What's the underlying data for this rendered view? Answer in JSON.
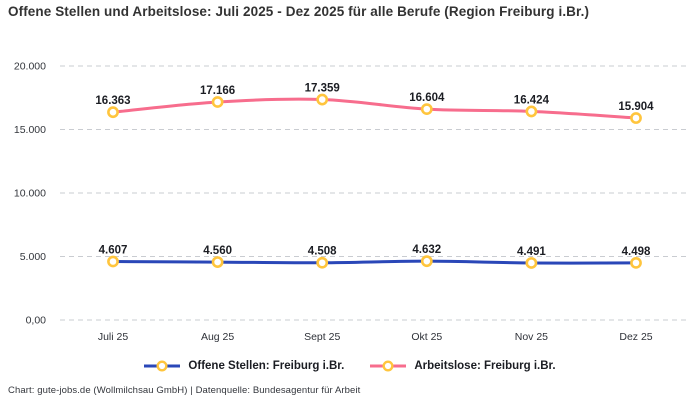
{
  "title": "Offene Stellen und Arbeitslose: Juli 2025 - Dez 2025 für alle Berufe (Region Freiburg i.Br.)",
  "footer": "Chart: gute-jobs.de (Wollmilchsau GmbH) | Datenquelle: Bundesagentur für Arbeit",
  "colors": {
    "open_positions_line": "#2A47B8",
    "unemployed_line": "#F76D8D",
    "marker_ring": "#FFC53D",
    "gridline": "#c9ccd1",
    "label_text": "#1b1d23",
    "tick_text": "#33363c"
  },
  "chart_data": {
    "type": "line",
    "title": "Offene Stellen und Arbeitslose: Juli 2025 - Dez 2025 für alle Berufe (Region Freiburg i.Br.)",
    "categories": [
      "Juli 25",
      "Aug 25",
      "Sept 25",
      "Okt 25",
      "Nov 25",
      "Dez 25"
    ],
    "series": [
      {
        "name": "Offene Stellen: Freiburg i.Br.",
        "values": [
          4607,
          4560,
          4508,
          4632,
          4491,
          4498
        ],
        "labels": [
          "4.607",
          "4.560",
          "4.508",
          "4.632",
          "4.491",
          "4.498"
        ],
        "color": "#2A47B8"
      },
      {
        "name": "Arbeitslose: Freiburg i.Br.",
        "values": [
          16363,
          17166,
          17359,
          16604,
          16424,
          15904
        ],
        "labels": [
          "16.363",
          "17.166",
          "17.359",
          "16.604",
          "16.424",
          "15.904"
        ],
        "color": "#F76D8D"
      }
    ],
    "marker_color": "#FFC53D",
    "y_ticks": [
      {
        "value": 0,
        "label": "0,00"
      },
      {
        "value": 5000,
        "label": "5.000"
      },
      {
        "value": 10000,
        "label": "10.000"
      },
      {
        "value": 15000,
        "label": "15.000"
      },
      {
        "value": 20000,
        "label": "20.000"
      }
    ],
    "ylim": [
      0,
      20000
    ],
    "grid": "horizontal-dashed",
    "legend_position": "bottom"
  }
}
